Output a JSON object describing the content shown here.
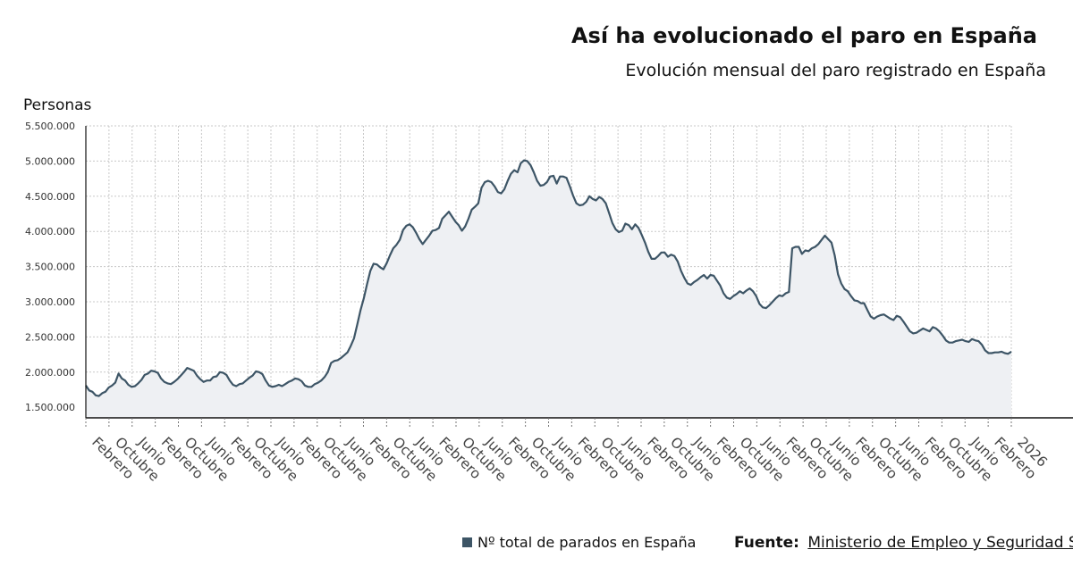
{
  "colors": {
    "line": "#3d5566",
    "fill": "#eef0f3",
    "grid": "#c8c8c8",
    "axis": "#111111"
  },
  "legend": {
    "label": "Nº total de parados en España",
    "swatch_color": "#3d5566"
  },
  "source": {
    "label": "Fuente:",
    "text": "Ministerio de Empleo y Seguridad Soc"
  },
  "chart_data": {
    "type": "area",
    "title": "Así ha evolucionado el paro en España",
    "subtitle": "Evolución mensual del paro registrado en España",
    "ylabel": "Personas",
    "xlabel": "",
    "ylim": [
      1350000,
      5500000
    ],
    "yticks": [
      "1.500.000",
      "2.000.000",
      "2.500.000",
      "3.000.000",
      "3.500.000",
      "4.000.000",
      "4.500.000",
      "5.000.000",
      "5.500.000"
    ],
    "ytick_values": [
      1500000,
      2000000,
      2500000,
      3000000,
      3500000,
      4000000,
      4500000,
      5000000,
      5500000
    ],
    "xticks": [
      "Febrero",
      "Octubre",
      "Junio",
      "Febrero",
      "Octubre",
      "Junio",
      "Febrero",
      "Octubre",
      "Junio",
      "Febrero",
      "Octubre",
      "Junio",
      "Febrero",
      "Octubre",
      "Junio",
      "Febrero",
      "Octubre",
      "Junio",
      "Febrero",
      "Octubre",
      "Junio",
      "Febrero",
      "Octubre",
      "Junio",
      "Febrero",
      "Octubre",
      "Junio",
      "Febrero",
      "Octubre",
      "Junio",
      "Febrero",
      "Octubre",
      "Junio",
      "Febrero",
      "Octubre",
      "Junio",
      "Febrero",
      "Octubre",
      "Junio",
      "Febrero",
      "2026"
    ],
    "grid": true,
    "legend_position": "bottom",
    "series": [
      {
        "name": "Nº total de parados en España",
        "values": [
          1810000,
          1740000,
          1720000,
          1670000,
          1660000,
          1700000,
          1720000,
          1780000,
          1810000,
          1850000,
          1980000,
          1910000,
          1880000,
          1820000,
          1790000,
          1800000,
          1840000,
          1890000,
          1960000,
          1980000,
          2020000,
          2010000,
          1990000,
          1910000,
          1860000,
          1840000,
          1830000,
          1860000,
          1900000,
          1950000,
          2000000,
          2060000,
          2040000,
          2020000,
          1950000,
          1900000,
          1860000,
          1880000,
          1880000,
          1930000,
          1940000,
          2000000,
          1990000,
          1960000,
          1880000,
          1820000,
          1800000,
          1830000,
          1840000,
          1880000,
          1920000,
          1950000,
          2010000,
          2000000,
          1970000,
          1880000,
          1810000,
          1790000,
          1800000,
          1820000,
          1800000,
          1830000,
          1860000,
          1880000,
          1910000,
          1900000,
          1870000,
          1810000,
          1790000,
          1790000,
          1830000,
          1850000,
          1880000,
          1930000,
          2000000,
          2130000,
          2160000,
          2170000,
          2200000,
          2240000,
          2280000,
          2370000,
          2480000,
          2680000,
          2880000,
          3050000,
          3250000,
          3440000,
          3540000,
          3530000,
          3490000,
          3460000,
          3550000,
          3660000,
          3760000,
          3810000,
          3880000,
          4020000,
          4080000,
          4100000,
          4060000,
          3980000,
          3890000,
          3820000,
          3880000,
          3940000,
          4010000,
          4020000,
          4050000,
          4180000,
          4230000,
          4280000,
          4210000,
          4140000,
          4090000,
          4010000,
          4070000,
          4180000,
          4310000,
          4350000,
          4400000,
          4620000,
          4700000,
          4720000,
          4700000,
          4640000,
          4560000,
          4540000,
          4600000,
          4720000,
          4820000,
          4870000,
          4840000,
          4970000,
          5010000,
          5000000,
          4940000,
          4840000,
          4720000,
          4650000,
          4660000,
          4700000,
          4780000,
          4790000,
          4680000,
          4780000,
          4780000,
          4760000,
          4640000,
          4510000,
          4400000,
          4370000,
          4380000,
          4420000,
          4500000,
          4460000,
          4440000,
          4490000,
          4460000,
          4400000,
          4260000,
          4120000,
          4030000,
          3990000,
          4010000,
          4110000,
          4090000,
          4030000,
          4100000,
          4050000,
          3950000,
          3840000,
          3710000,
          3610000,
          3610000,
          3650000,
          3700000,
          3700000,
          3640000,
          3670000,
          3650000,
          3570000,
          3440000,
          3340000,
          3260000,
          3240000,
          3280000,
          3310000,
          3350000,
          3380000,
          3330000,
          3380000,
          3370000,
          3300000,
          3230000,
          3120000,
          3060000,
          3040000,
          3080000,
          3110000,
          3150000,
          3120000,
          3160000,
          3190000,
          3150000,
          3080000,
          2970000,
          2920000,
          2910000,
          2950000,
          3000000,
          3050000,
          3090000,
          3080000,
          3120000,
          3140000,
          3760000,
          3780000,
          3780000,
          3680000,
          3730000,
          3720000,
          3760000,
          3780000,
          3820000,
          3880000,
          3940000,
          3890000,
          3840000,
          3660000,
          3390000,
          3260000,
          3180000,
          3150000,
          3080000,
          3020000,
          3010000,
          2980000,
          2980000,
          2880000,
          2790000,
          2760000,
          2790000,
          2810000,
          2820000,
          2790000,
          2760000,
          2740000,
          2800000,
          2780000,
          2720000,
          2650000,
          2580000,
          2550000,
          2560000,
          2590000,
          2620000,
          2600000,
          2580000,
          2640000,
          2620000,
          2580000,
          2520000,
          2450000,
          2420000,
          2420000,
          2440000,
          2450000,
          2460000,
          2440000,
          2430000,
          2470000,
          2450000,
          2440000,
          2390000,
          2310000,
          2270000,
          2270000,
          2280000,
          2280000,
          2290000,
          2270000,
          2260000,
          2290000
        ]
      }
    ]
  }
}
